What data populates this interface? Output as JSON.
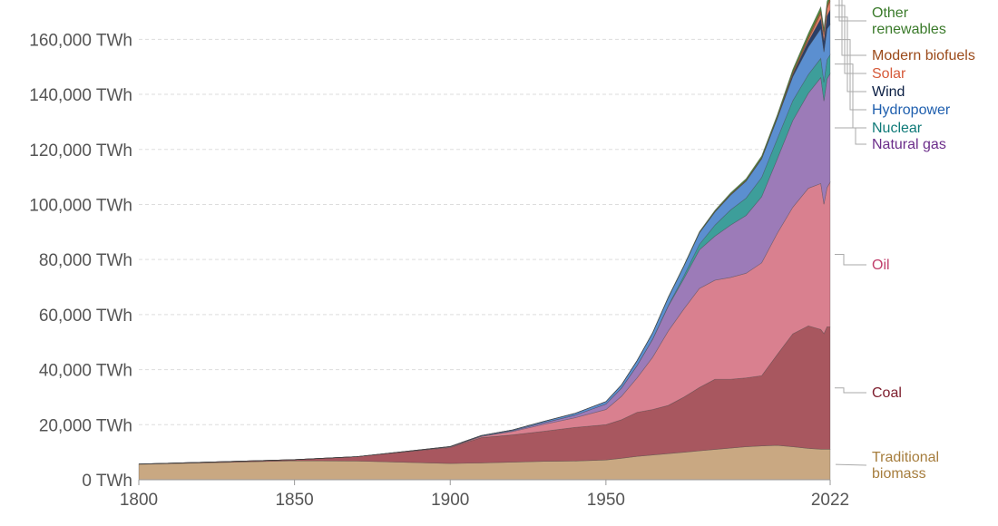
{
  "chart_data": {
    "type": "area",
    "stacked": true,
    "x_axis": {
      "min": 1800,
      "max": 2022,
      "ticks": [
        "1800",
        "1850",
        "1900",
        "1950",
        "2022"
      ]
    },
    "y_axis": {
      "min": 0,
      "max": 170000,
      "grid": true,
      "ticks": [
        "0 TWh",
        "20,000 TWh",
        "40,000 TWh",
        "60,000 TWh",
        "80,000 TWh",
        "100,000 TWh",
        "120,000 TWh",
        "140,000 TWh",
        "160,000 TWh"
      ],
      "tick_values": [
        0,
        20000,
        40000,
        60000,
        80000,
        100000,
        120000,
        140000,
        160000
      ]
    },
    "legend": "right-side inline labels",
    "x": [
      1800,
      1850,
      1870,
      1900,
      1910,
      1920,
      1930,
      1940,
      1950,
      1955,
      1960,
      1965,
      1970,
      1975,
      1980,
      1985,
      1990,
      1995,
      2000,
      2005,
      2010,
      2015,
      2019,
      2020,
      2021,
      2022
    ],
    "series": [
      {
        "name": "Traditional biomass",
        "label_lines": [
          "Traditional",
          "biomass"
        ],
        "color": "#c9a882",
        "label_color": "#a67d3d",
        "values": [
          5600,
          6900,
          6800,
          5900,
          6100,
          6400,
          6700,
          6800,
          7200,
          7800,
          8500,
          9000,
          9500,
          10000,
          10500,
          11000,
          11500,
          12000,
          12300,
          12500,
          12000,
          11400,
          11100,
          11100,
          11100,
          11100
        ]
      },
      {
        "name": "Coal",
        "label_lines": [
          "Coal"
        ],
        "color": "#a8575f",
        "label_color": "#7d1d2d",
        "values": [
          100,
          400,
          1600,
          5800,
          9200,
          9900,
          10900,
          12200,
          12800,
          14000,
          16000,
          16500,
          17500,
          20000,
          23000,
          25500,
          25000,
          25000,
          25500,
          33000,
          41000,
          44500,
          43500,
          42000,
          44500,
          44500
        ]
      },
      {
        "name": "Oil",
        "label_lines": [
          "Oil"
        ],
        "color": "#d9808f",
        "label_color": "#c03e6b",
        "values": [
          0,
          0,
          0,
          200,
          400,
          1200,
          2500,
          3500,
          5500,
          8500,
          12500,
          19000,
          27000,
          32000,
          36000,
          36000,
          37000,
          38000,
          41000,
          44000,
          46000,
          50000,
          53000,
          47000,
          50500,
          52500
        ]
      },
      {
        "name": "Natural gas",
        "label_lines": [
          "Natural gas"
        ],
        "color": "#9c7bb8",
        "label_color": "#6b2d8a",
        "values": [
          0,
          0,
          0,
          100,
          200,
          300,
          600,
          900,
          2000,
          3000,
          4500,
          6500,
          9000,
          11000,
          14000,
          16000,
          19000,
          21000,
          24000,
          27000,
          31500,
          34500,
          38500,
          37500,
          39500,
          39500
        ]
      },
      {
        "name": "Nuclear",
        "label_lines": [
          "Nuclear"
        ],
        "color": "#3d9e9a",
        "label_color": "#0f7a78",
        "values": [
          0,
          0,
          0,
          0,
          0,
          0,
          0,
          0,
          0,
          0,
          0,
          100,
          200,
          1000,
          2000,
          4000,
          5500,
          6300,
          7000,
          7300,
          7200,
          6800,
          7000,
          6800,
          7000,
          6800
        ]
      },
      {
        "name": "Hydropower",
        "label_lines": [
          "Hydropower"
        ],
        "color": "#5b8fd0",
        "label_color": "#1f5fae",
        "values": [
          0,
          0,
          0,
          100,
          200,
          300,
          500,
          700,
          900,
          1200,
          1800,
          2300,
          3000,
          3600,
          4200,
          4800,
          5400,
          6200,
          6800,
          7400,
          8700,
          10000,
          10800,
          11000,
          11200,
          11000
        ]
      },
      {
        "name": "Wind",
        "label_lines": [
          "Wind"
        ],
        "color": "#2a3f66",
        "label_color": "#0b1f44",
        "values": [
          0,
          0,
          0,
          0,
          0,
          0,
          0,
          0,
          0,
          0,
          0,
          0,
          0,
          0,
          0,
          0,
          0,
          0,
          50,
          150,
          800,
          2100,
          3600,
          4000,
          4700,
          5300
        ]
      },
      {
        "name": "Solar",
        "label_lines": [
          "Solar"
        ],
        "color": "#e8836b",
        "label_color": "#d65a3a",
        "values": [
          0,
          0,
          0,
          0,
          0,
          0,
          0,
          0,
          0,
          0,
          0,
          0,
          0,
          0,
          0,
          0,
          0,
          0,
          0,
          10,
          100,
          700,
          1800,
          2200,
          2700,
          3200
        ]
      },
      {
        "name": "Modern biofuels",
        "label_lines": [
          "Modern biofuels"
        ],
        "color": "#b5642a",
        "label_color": "#9b4a1a",
        "values": [
          0,
          0,
          0,
          0,
          0,
          0,
          0,
          0,
          0,
          0,
          0,
          0,
          0,
          0,
          100,
          200,
          300,
          300,
          300,
          400,
          800,
          1000,
          1100,
          1050,
          1100,
          1150
        ]
      },
      {
        "name": "Other renewables",
        "label_lines": [
          "Other",
          "renewables"
        ],
        "color": "#4f8c3c",
        "label_color": "#3a7a2a",
        "values": [
          0,
          0,
          0,
          0,
          0,
          0,
          0,
          0,
          0,
          0,
          0,
          100,
          200,
          250,
          300,
          400,
          500,
          600,
          700,
          800,
          1000,
          1200,
          1400,
          1450,
          1500,
          1550
        ]
      }
    ]
  }
}
